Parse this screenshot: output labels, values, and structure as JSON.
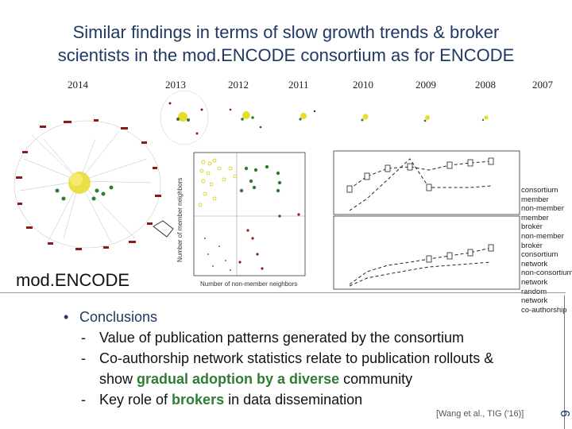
{
  "title_line1": "Similar findings in terms of slow growth trends & broker",
  "title_line2": "scientists in the mod.ENCODE consortium as for ENCODE",
  "years": [
    "2014",
    "2013",
    "2012",
    "2011",
    "2010",
    "2009",
    "2008",
    "2007"
  ],
  "network_label": "mod.ENCODE",
  "scatter": {
    "ylabel": "Number of member neighbors",
    "xlabel": "Number of non-member neighbors"
  },
  "legend": [
    "consortium",
    "member",
    "non-member",
    "member",
    "broker",
    "non-member",
    "broker",
    "consortium",
    "network",
    "non-consortium",
    "network",
    "random",
    "network",
    "co-authorship"
  ],
  "bullets": {
    "main": "Conclusions",
    "sub1": "Value of publication patterns generated by the consortium",
    "sub2": "Co-authorship network statistics relate to publication rollouts &",
    "sub2b_pre": "show ",
    "sub2b_green": "gradual adoption by a diverse",
    "sub2b_post": " community",
    "sub3_pre": "Key role of ",
    "sub3_green": "brokers",
    "sub3_post": " in data dissemination",
    "dash": "-"
  },
  "citation": "[Wang et al., TIG ('16)]",
  "slide_number": "9",
  "colors": {
    "title": "#1f3864",
    "green": "#2e7d32",
    "yellow": "#e0d000",
    "dark_red": "#8b1a1a"
  }
}
